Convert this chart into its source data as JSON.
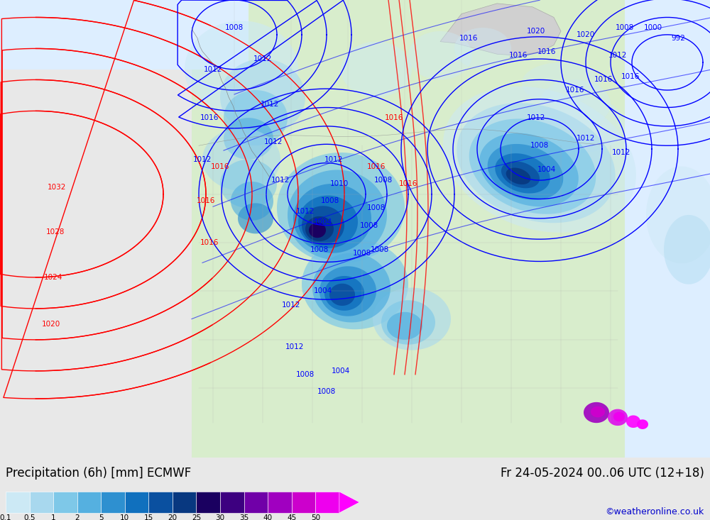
{
  "title_left": "Precipitation (6h) [mm] ECMWF",
  "title_right": "Fr 24-05-2024 00..06 UTC (12+18)",
  "credit": "©weatheronline.co.uk",
  "colorbar_values": [
    "0.1",
    "0.5",
    "1",
    "2",
    "5",
    "10",
    "15",
    "20",
    "25",
    "30",
    "35",
    "40",
    "45",
    "50"
  ],
  "colorbar_colors": [
    "#cce9f5",
    "#a8d8ee",
    "#7ec8e8",
    "#55b0e0",
    "#2e90d0",
    "#1070be",
    "#0a50a0",
    "#083880",
    "#1a0060",
    "#3d0080",
    "#7000a8",
    "#a000c0",
    "#cc00cc",
    "#ee00ee"
  ],
  "arrow_color": "#ff00ff",
  "bg_color": "#e8e8e8",
  "land_color": "#d8edcc",
  "ocean_color": "#e8e8e8",
  "legend_bg": "#c8c8c8",
  "label_fontsize": 12,
  "credit_fontsize": 9,
  "isobar_fontsize": 7.5
}
